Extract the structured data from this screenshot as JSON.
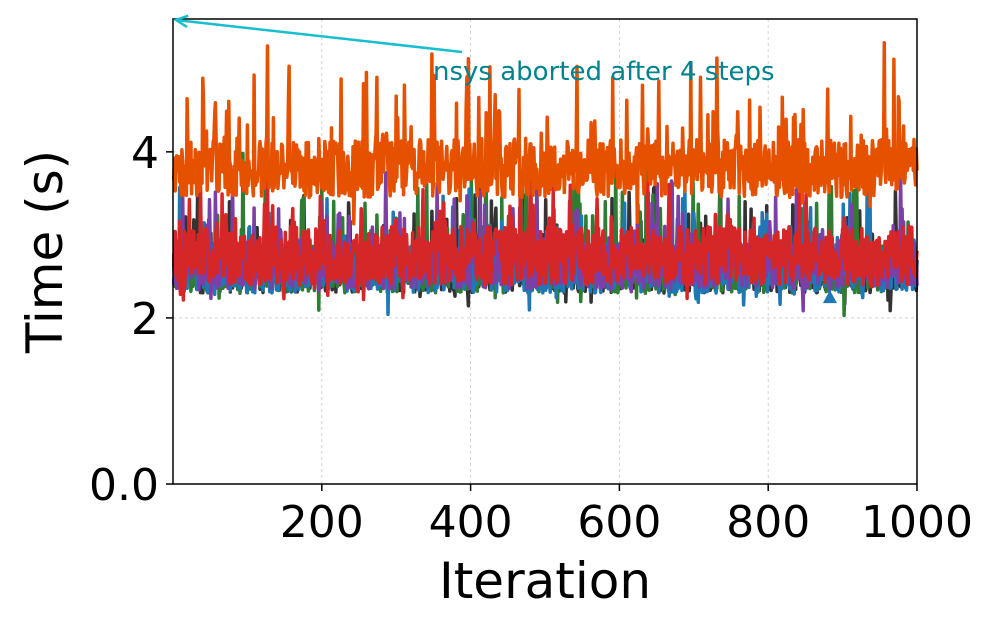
{
  "chart_data": {
    "type": "line",
    "title": "",
    "xlabel": "Iteration",
    "ylabel": "Time (s)",
    "xlim": [
      0,
      1000
    ],
    "ylim": [
      0,
      5.6
    ],
    "grid": true,
    "x_ticks": [
      {
        "value": 200,
        "label": "200"
      },
      {
        "value": 400,
        "label": "400"
      },
      {
        "value": 600,
        "label": "600"
      },
      {
        "value": 800,
        "label": "800"
      },
      {
        "value": 1000,
        "label": "1000"
      }
    ],
    "y_ticks": [
      {
        "value": 0,
        "label": "0.0"
      },
      {
        "value": 2,
        "label": "2"
      },
      {
        "value": 4,
        "label": "4"
      }
    ],
    "series": [
      {
        "color": "#333333",
        "base": 2.55,
        "spread": 0.25,
        "spike_prob": 0.1,
        "spike_max": 0.9
      },
      {
        "color": "#2e7d32",
        "base": 2.6,
        "spread": 0.3,
        "spike_prob": 0.1,
        "spike_max": 1.1
      },
      {
        "color": "#1f77b4",
        "base": 2.6,
        "spread": 0.3,
        "spike_prob": 0.08,
        "spike_max": 0.8
      },
      {
        "color": "#7b3fa6",
        "base": 2.65,
        "spread": 0.3,
        "spike_prob": 0.08,
        "spike_max": 0.9
      },
      {
        "color": "#d62728",
        "base": 2.75,
        "spread": 0.35,
        "spike_prob": 0.1,
        "spike_max": 0.7
      },
      {
        "color": "#e65100",
        "base": 3.8,
        "spread": 0.35,
        "spike_prob": 0.12,
        "spike_max": 1.2
      }
    ],
    "markers": [
      {
        "x": 883,
        "y": 2.25,
        "shape": "triangle",
        "color": "#1f77b4"
      }
    ],
    "annotation": {
      "text": "nsys aborted after 4 steps",
      "text_x": 390,
      "text_y": 5.0,
      "arrow_to_x": 4,
      "arrow_to_y": 5.6,
      "text_color": "#00838f",
      "arrow_color": "#17becf"
    }
  }
}
